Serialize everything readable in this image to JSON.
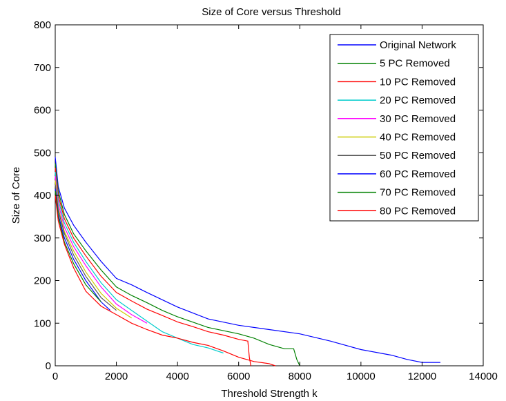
{
  "chart_data": {
    "type": "line",
    "title": "Size of Core versus Threshold",
    "xlabel": "Threshold Strength k",
    "ylabel": "Size of Core",
    "xlim": [
      0,
      14000
    ],
    "ylim": [
      0,
      800
    ],
    "xticks": [
      0,
      2000,
      4000,
      6000,
      8000,
      10000,
      12000,
      14000
    ],
    "xtick_labels": [
      "0",
      "2000",
      "4000",
      "6000",
      "8000",
      "10000",
      "12000",
      "14000"
    ],
    "yticks": [
      0,
      100,
      200,
      300,
      400,
      500,
      600,
      700,
      800
    ],
    "ytick_labels": [
      "0",
      "100",
      "200",
      "300",
      "400",
      "500",
      "600",
      "700",
      "800"
    ],
    "grid": false,
    "legend_position": "top-right",
    "series": [
      {
        "name": "Original Network",
        "color": "#0000ff",
        "x": [
          0,
          100,
          300,
          600,
          1000,
          1500,
          2000,
          2500,
          3000,
          3500,
          4000,
          5000,
          6000,
          7000,
          8000,
          9000,
          10000,
          11000,
          11500,
          12000,
          12600
        ],
        "y": [
          490,
          420,
          370,
          330,
          290,
          245,
          205,
          190,
          172,
          155,
          138,
          110,
          95,
          85,
          75,
          58,
          38,
          25,
          15,
          8,
          8
        ]
      },
      {
        "name": "5 PC Removed",
        "color": "#008000",
        "x": [
          0,
          100,
          300,
          600,
          1000,
          1500,
          2000,
          2500,
          3000,
          3500,
          4000,
          5000,
          6000,
          6500,
          7000,
          7500,
          7800,
          7900,
          8000
        ],
        "y": [
          475,
          410,
          355,
          310,
          270,
          225,
          185,
          165,
          148,
          130,
          115,
          90,
          75,
          65,
          50,
          40,
          40,
          15,
          0
        ]
      },
      {
        "name": "10 PC Removed",
        "color": "#ff0000",
        "x": [
          0,
          100,
          300,
          600,
          1000,
          1500,
          2000,
          2500,
          3000,
          3500,
          4000,
          4500,
          5000,
          5500,
          6000,
          6300,
          6350,
          6400
        ],
        "y": [
          465,
          400,
          345,
          300,
          258,
          210,
          172,
          152,
          133,
          118,
          103,
          92,
          80,
          72,
          62,
          58,
          20,
          0
        ]
      },
      {
        "name": "20 PC Removed",
        "color": "#00cccc",
        "x": [
          0,
          100,
          300,
          600,
          1000,
          1500,
          2000,
          2500,
          3000,
          3500,
          4000,
          4500,
          5000,
          5500
        ],
        "y": [
          455,
          390,
          335,
          290,
          245,
          195,
          155,
          130,
          105,
          80,
          65,
          50,
          42,
          30
        ]
      },
      {
        "name": "30 PC Removed",
        "color": "#ff00ff",
        "x": [
          0,
          100,
          300,
          600,
          1000,
          1500,
          2000,
          2500,
          3000
        ],
        "y": [
          445,
          380,
          325,
          280,
          235,
          185,
          145,
          120,
          100
        ]
      },
      {
        "name": "40 PC Removed",
        "color": "#cccc00",
        "x": [
          0,
          100,
          300,
          600,
          1000,
          1500,
          2000,
          2500
        ],
        "y": [
          435,
          370,
          315,
          270,
          220,
          170,
          135,
          112
        ]
      },
      {
        "name": "50 PC Removed",
        "color": "#555555",
        "x": [
          0,
          100,
          300,
          600,
          1000,
          1500,
          2000
        ],
        "y": [
          425,
          365,
          310,
          260,
          210,
          160,
          130
        ]
      },
      {
        "name": "60 PC Removed",
        "color": "#0000ff",
        "x": [
          0,
          100,
          300,
          600,
          1000,
          1500,
          1800
        ],
        "y": [
          415,
          355,
          300,
          250,
          200,
          150,
          130
        ]
      },
      {
        "name": "70 PC Removed",
        "color": "#008000",
        "x": [
          0,
          100,
          300,
          600,
          1000,
          1500
        ],
        "y": [
          410,
          350,
          290,
          240,
          190,
          150
        ]
      },
      {
        "name": "80 PC Removed",
        "color": "#ff0000",
        "x": [
          0,
          100,
          300,
          600,
          1000,
          1500,
          2000,
          2500,
          3000,
          3500,
          4000,
          4500,
          5000,
          5500,
          6000,
          6500,
          7000,
          7200
        ],
        "y": [
          400,
          340,
          285,
          230,
          175,
          140,
          120,
          100,
          85,
          72,
          65,
          55,
          48,
          35,
          20,
          10,
          5,
          0
        ]
      }
    ]
  }
}
